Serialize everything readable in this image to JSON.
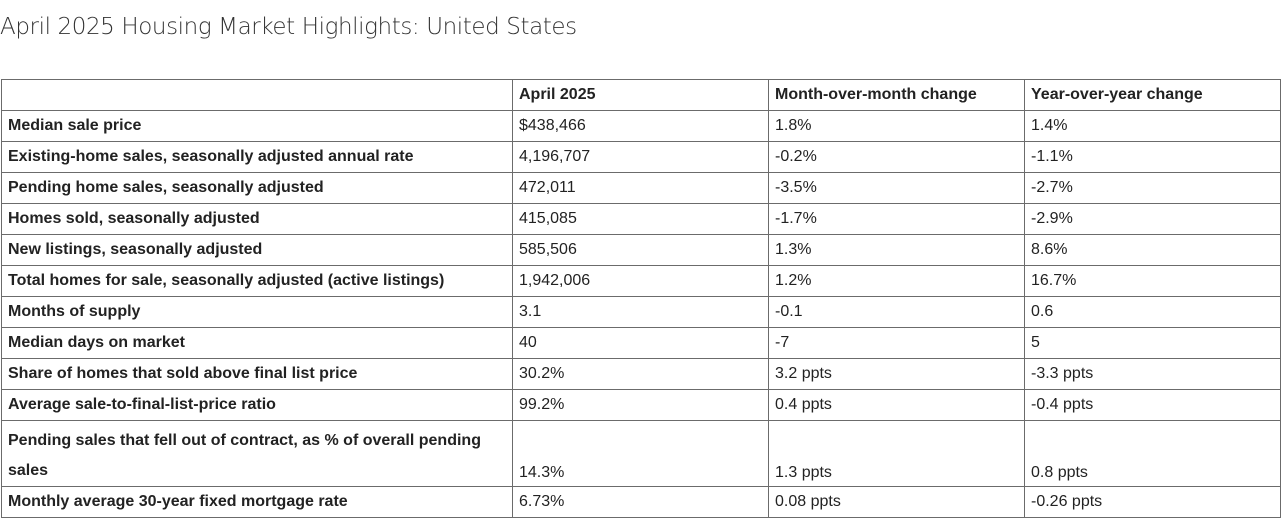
{
  "title": "April 2025 Housing Market Highlights: United States",
  "table": {
    "headers": [
      "",
      "April 2025",
      "Month-over-month change",
      "Year-over-year change"
    ],
    "rows": [
      {
        "metric": "Median sale price",
        "value": "$438,466",
        "mom": "1.8%",
        "yoy": "1.4%"
      },
      {
        "metric": "Existing-home sales, seasonally adjusted annual rate",
        "value": "4,196,707",
        "mom": "-0.2%",
        "yoy": "-1.1%"
      },
      {
        "metric": "Pending home sales, seasonally adjusted",
        "value": "472,011",
        "mom": "-3.5%",
        "yoy": "-2.7%"
      },
      {
        "metric": "Homes sold, seasonally adjusted",
        "value": "415,085",
        "mom": "-1.7%",
        "yoy": "-2.9%"
      },
      {
        "metric": "New listings, seasonally adjusted",
        "value": "585,506",
        "mom": "1.3%",
        "yoy": "8.6%"
      },
      {
        "metric": "Total homes for sale, seasonally adjusted (active listings)",
        "value": "1,942,006",
        "mom": "1.2%",
        "yoy": "16.7%"
      },
      {
        "metric": "Months of supply",
        "value": "3.1",
        "mom": "-0.1",
        "yoy": "0.6"
      },
      {
        "metric": "Median days on market",
        "value": "40",
        "mom": "-7",
        "yoy": "5"
      },
      {
        "metric": "Share of homes that sold above final list price",
        "value": "30.2%",
        "mom": "3.2 ppts",
        "yoy": "-3.3 ppts"
      },
      {
        "metric": "Average sale-to-final-list-price ratio",
        "value": "99.2%",
        "mom": "0.4 ppts",
        "yoy": "-0.4 ppts"
      },
      {
        "metric": "Pending sales that fell out of contract, as % of overall pending sales",
        "value": "14.3%",
        "mom": "1.3 ppts",
        "yoy": "0.8 ppts"
      },
      {
        "metric": "Monthly average 30-year fixed mortgage rate",
        "value": "6.73%",
        "mom": "0.08 ppts",
        "yoy": "-0.26 ppts"
      }
    ]
  }
}
